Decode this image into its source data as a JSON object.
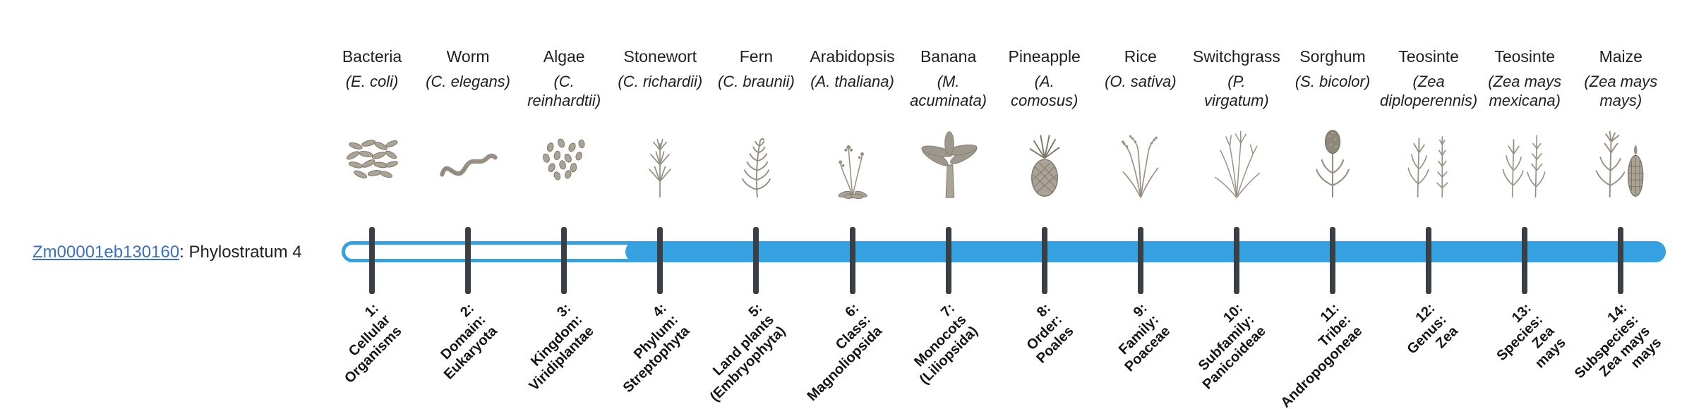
{
  "gene": {
    "id": "Zm00001eb130160",
    "suffix": ": Phylostratum 4"
  },
  "colors": {
    "bar": "#36a1e0",
    "tick": "#3a3f45",
    "link": "#3b6fc4",
    "text": "#1f1f1f",
    "sketch": "#968f82"
  },
  "timeline": {
    "total_strata": 14,
    "filled_from_index": 4
  },
  "strata": [
    {
      "index": 1,
      "organism": "Bacteria",
      "scientific_lines": [
        "(E. coli)"
      ],
      "icon": "bacteria",
      "label_lines": [
        "1:",
        "Cellular",
        "Organisms"
      ]
    },
    {
      "index": 2,
      "organism": "Worm",
      "scientific_lines": [
        "(C. elegans)"
      ],
      "icon": "worm",
      "label_lines": [
        "2:",
        "Domain:",
        "Eukaryota"
      ]
    },
    {
      "index": 3,
      "organism": "Algae",
      "scientific_lines": [
        "(C.",
        "reinhardtii)"
      ],
      "icon": "algae",
      "label_lines": [
        "3:",
        "Kingdom:",
        "Viridiplantae"
      ]
    },
    {
      "index": 4,
      "organism": "Stonewort",
      "scientific_lines": [
        "(C. richardii)"
      ],
      "icon": "stonewort",
      "label_lines": [
        "4:",
        "Phylum:",
        "Streptophyta"
      ]
    },
    {
      "index": 5,
      "organism": "Fern",
      "scientific_lines": [
        "(C. braunii)"
      ],
      "icon": "fern",
      "label_lines": [
        "5:",
        "Land plants",
        "(Embryophyta)"
      ]
    },
    {
      "index": 6,
      "organism": "Arabidopsis",
      "scientific_lines": [
        "(A. thaliana)"
      ],
      "icon": "arabidopsis",
      "label_lines": [
        "6:",
        "Class:",
        "Magnoliopsida"
      ]
    },
    {
      "index": 7,
      "organism": "Banana",
      "scientific_lines": [
        "(M.",
        "acuminata)"
      ],
      "icon": "banana",
      "label_lines": [
        "7:",
        "Monocots",
        "(Liliopsida)"
      ]
    },
    {
      "index": 8,
      "organism": "Pineapple",
      "scientific_lines": [
        "(A.",
        "comosus)"
      ],
      "icon": "pineapple",
      "label_lines": [
        "8:",
        "Order:",
        "Poales"
      ]
    },
    {
      "index": 9,
      "organism": "Rice",
      "scientific_lines": [
        "(O. sativa)"
      ],
      "icon": "rice",
      "label_lines": [
        "9:",
        "Family:",
        "Poaceae"
      ]
    },
    {
      "index": 10,
      "organism": "Switchgrass",
      "scientific_lines": [
        "(P.",
        "virgatum)"
      ],
      "icon": "switchgrass",
      "label_lines": [
        "10:",
        "Subfamily:",
        "Panicoideae"
      ]
    },
    {
      "index": 11,
      "organism": "Sorghum",
      "scientific_lines": [
        "(S. bicolor)"
      ],
      "icon": "sorghum",
      "label_lines": [
        "11:",
        "Tribe:",
        "Andropogoneae"
      ]
    },
    {
      "index": 12,
      "organism": "Teosinte",
      "scientific_lines": [
        "(Zea",
        "diploperennis)"
      ],
      "icon": "teosinte-diploperennis",
      "label_lines": [
        "12:",
        "Genus:",
        "Zea"
      ]
    },
    {
      "index": 13,
      "organism": "Teosinte",
      "scientific_lines": [
        "(Zea mays",
        "mexicana)"
      ],
      "icon": "teosinte-mexicana",
      "label_lines": [
        "13:",
        "Species:",
        "Zea",
        "mays"
      ]
    },
    {
      "index": 14,
      "organism": "Maize",
      "scientific_lines": [
        "(Zea mays",
        "mays)"
      ],
      "icon": "maize",
      "label_lines": [
        "14:",
        "Subspecies:",
        "Zea mays",
        "mays"
      ]
    }
  ]
}
